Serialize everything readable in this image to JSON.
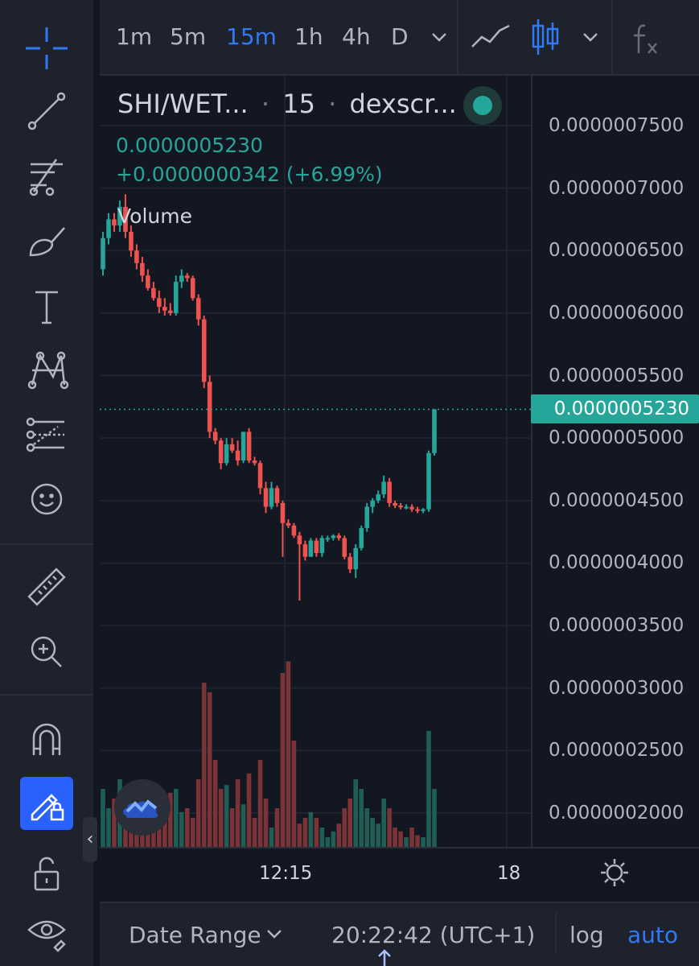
{
  "toolbar": {
    "intervals": [
      "1m",
      "5m",
      "15m",
      "1h",
      "4h",
      "D"
    ],
    "active_interval": "15m"
  },
  "legend": {
    "symbol": "SHI/WET...",
    "interval": "15",
    "exchange": "dexscr...",
    "separator": "·",
    "price": "0.0000005230",
    "change": "+0.0000000342 (+6.99%)",
    "volume_label": "Volume"
  },
  "price_scale": {
    "labels": [
      "0.0000007500",
      "0.0000007000",
      "0.0000006500",
      "0.0000006000",
      "0.0000005500",
      "0.0000005000",
      "0.0000004500",
      "0.0000004000",
      "0.0000003500",
      "0.0000003000",
      "0.0000002500",
      "0.0000002000"
    ],
    "last_price": "0.0000005230"
  },
  "time_scale": {
    "labels": [
      "12:15",
      "18"
    ]
  },
  "bottom_bar": {
    "date_range": "Date Range",
    "clock": "20:22:42 (UTC+1)",
    "log": "log",
    "auto": "auto"
  },
  "colors": {
    "up": "#26a69a",
    "down": "#ef5350",
    "accent": "#3179f5",
    "background": "#131722",
    "panel": "#1e222d"
  },
  "chart_data": {
    "type": "candlestick",
    "symbol": "SHI/WETH",
    "interval": "15",
    "y_range": [
      1.8e-07,
      7.9e-07
    ],
    "x_labels": [
      "12:15",
      "18"
    ],
    "candles": [
      {
        "o": 6.35e-07,
        "h": 6.65e-07,
        "l": 6.3e-07,
        "c": 6.6e-07
      },
      {
        "o": 6.6e-07,
        "h": 6.8e-07,
        "l": 6.55e-07,
        "c": 6.75e-07
      },
      {
        "o": 6.75e-07,
        "h": 6.8e-07,
        "l": 6.65e-07,
        "c": 6.7e-07
      },
      {
        "o": 6.7e-07,
        "h": 6.9e-07,
        "l": 6.65e-07,
        "c": 6.85e-07
      },
      {
        "o": 6.85e-07,
        "h": 6.95e-07,
        "l": 6.6e-07,
        "c": 6.65e-07
      },
      {
        "o": 6.65e-07,
        "h": 6.7e-07,
        "l": 6.45e-07,
        "c": 6.5e-07
      },
      {
        "o": 6.5e-07,
        "h": 6.55e-07,
        "l": 6.35e-07,
        "c": 6.4e-07
      },
      {
        "o": 6.4e-07,
        "h": 6.45e-07,
        "l": 6.25e-07,
        "c": 6.3e-07
      },
      {
        "o": 6.3e-07,
        "h": 6.35e-07,
        "l": 6.18e-07,
        "c": 6.2e-07
      },
      {
        "o": 6.2e-07,
        "h": 6.25e-07,
        "l": 6.1e-07,
        "c": 6.12e-07
      },
      {
        "o": 6.12e-07,
        "h": 6.18e-07,
        "l": 6e-07,
        "c": 6.05e-07
      },
      {
        "o": 6.05e-07,
        "h": 6.12e-07,
        "l": 5.98e-07,
        "c": 6.02e-07
      },
      {
        "o": 6.02e-07,
        "h": 6.08e-07,
        "l": 5.98e-07,
        "c": 6e-07
      },
      {
        "o": 6e-07,
        "h": 6.3e-07,
        "l": 5.98e-07,
        "c": 6.25e-07
      },
      {
        "o": 6.25e-07,
        "h": 6.35e-07,
        "l": 6.2e-07,
        "c": 6.3e-07
      },
      {
        "o": 6.3e-07,
        "h": 6.32e-07,
        "l": 6.25e-07,
        "c": 6.28e-07
      },
      {
        "o": 6.28e-07,
        "h": 6.3e-07,
        "l": 6.1e-07,
        "c": 6.12e-07
      },
      {
        "o": 6.12e-07,
        "h": 6.15e-07,
        "l": 5.9e-07,
        "c": 5.95e-07
      },
      {
        "o": 5.95e-07,
        "h": 5.98e-07,
        "l": 5.4e-07,
        "c": 5.45e-07
      },
      {
        "o": 5.45e-07,
        "h": 5.5e-07,
        "l": 5e-07,
        "c": 5.05e-07
      },
      {
        "o": 5.05e-07,
        "h": 5.08e-07,
        "l": 4.95e-07,
        "c": 4.98e-07
      },
      {
        "o": 4.98e-07,
        "h": 5e-07,
        "l": 4.75e-07,
        "c": 4.8e-07
      },
      {
        "o": 4.8e-07,
        "h": 5e-07,
        "l": 4.78e-07,
        "c": 4.95e-07
      },
      {
        "o": 4.95e-07,
        "h": 5e-07,
        "l": 4.88e-07,
        "c": 4.9e-07
      },
      {
        "o": 4.9e-07,
        "h": 4.98e-07,
        "l": 4.78e-07,
        "c": 4.82e-07
      },
      {
        "o": 4.82e-07,
        "h": 5.05e-07,
        "l": 4.8e-07,
        "c": 5.05e-07
      },
      {
        "o": 5.05e-07,
        "h": 5.08e-07,
        "l": 4.8e-07,
        "c": 4.82e-07
      },
      {
        "o": 4.82e-07,
        "h": 4.85e-07,
        "l": 4.78e-07,
        "c": 4.8e-07
      },
      {
        "o": 4.8e-07,
        "h": 4.82e-07,
        "l": 4.55e-07,
        "c": 4.6e-07
      },
      {
        "o": 4.6e-07,
        "h": 4.65e-07,
        "l": 4.4e-07,
        "c": 4.45e-07
      },
      {
        "o": 4.45e-07,
        "h": 4.65e-07,
        "l": 4.43e-07,
        "c": 4.6e-07
      },
      {
        "o": 4.6e-07,
        "h": 4.62e-07,
        "l": 4.45e-07,
        "c": 4.48e-07
      },
      {
        "o": 4.48e-07,
        "h": 4.5e-07,
        "l": 4.05e-07,
        "c": 4.32e-07
      },
      {
        "o": 4.32e-07,
        "h": 4.35e-07,
        "l": 4.28e-07,
        "c": 4.3e-07
      },
      {
        "o": 4.3e-07,
        "h": 4.32e-07,
        "l": 4.2e-07,
        "c": 4.22e-07
      },
      {
        "o": 4.22e-07,
        "h": 4.25e-07,
        "l": 3.7e-07,
        "c": 4.15e-07
      },
      {
        "o": 4.15e-07,
        "h": 4.18e-07,
        "l": 4.02e-07,
        "c": 4.05e-07
      },
      {
        "o": 4.05e-07,
        "h": 4.2e-07,
        "l": 4.05e-07,
        "c": 4.18e-07
      },
      {
        "o": 4.18e-07,
        "h": 4.2e-07,
        "l": 4.05e-07,
        "c": 4.08e-07
      },
      {
        "o": 4.08e-07,
        "h": 4.22e-07,
        "l": 4.05e-07,
        "c": 4.2e-07
      },
      {
        "o": 4.2e-07,
        "h": 4.22e-07,
        "l": 4.17e-07,
        "c": 4.2e-07
      },
      {
        "o": 4.2e-07,
        "h": 4.23e-07,
        "l": 4.18e-07,
        "c": 4.22e-07
      },
      {
        "o": 4.22e-07,
        "h": 4.24e-07,
        "l": 4.18e-07,
        "c": 4.2e-07
      },
      {
        "o": 4.2e-07,
        "h": 4.22e-07,
        "l": 4.03e-07,
        "c": 4.05e-07
      },
      {
        "o": 4.05e-07,
        "h": 4.08e-07,
        "l": 3.92e-07,
        "c": 3.95e-07
      },
      {
        "o": 3.95e-07,
        "h": 4.15e-07,
        "l": 3.88e-07,
        "c": 4.12e-07
      },
      {
        "o": 4.12e-07,
        "h": 4.3e-07,
        "l": 4.1e-07,
        "c": 4.28e-07
      },
      {
        "o": 4.28e-07,
        "h": 4.48e-07,
        "l": 4.25e-07,
        "c": 4.45e-07
      },
      {
        "o": 4.45e-07,
        "h": 4.52e-07,
        "l": 4.4e-07,
        "c": 4.5e-07
      },
      {
        "o": 4.5e-07,
        "h": 4.58e-07,
        "l": 4.48e-07,
        "c": 4.55e-07
      },
      {
        "o": 4.55e-07,
        "h": 4.7e-07,
        "l": 4.52e-07,
        "c": 4.65e-07
      },
      {
        "o": 4.65e-07,
        "h": 4.68e-07,
        "l": 4.45e-07,
        "c": 4.48e-07
      },
      {
        "o": 4.48e-07,
        "h": 4.5e-07,
        "l": 4.44e-07,
        "c": 4.46e-07
      },
      {
        "o": 4.46e-07,
        "h": 4.48e-07,
        "l": 4.43e-07,
        "c": 4.45e-07
      },
      {
        "o": 4.45e-07,
        "h": 4.47e-07,
        "l": 4.43e-07,
        "c": 4.45e-07
      },
      {
        "o": 4.45e-07,
        "h": 4.47e-07,
        "l": 4.41e-07,
        "c": 4.43e-07
      },
      {
        "o": 4.43e-07,
        "h": 4.45e-07,
        "l": 4.4e-07,
        "c": 4.42e-07
      },
      {
        "o": 4.42e-07,
        "h": 4.44e-07,
        "l": 4.4e-07,
        "c": 4.43e-07
      },
      {
        "o": 4.43e-07,
        "h": 4.9e-07,
        "l": 4.41e-07,
        "c": 4.88e-07
      },
      {
        "o": 4.88e-07,
        "h": 5.23e-07,
        "l": 4.86e-07,
        "c": 5.23e-07
      }
    ],
    "volume": [
      0.3,
      0.2,
      0.25,
      0.35,
      0.3,
      0.25,
      0.2,
      0.3,
      0.25,
      0.2,
      0.15,
      0.25,
      0.28,
      0.3,
      0.18,
      0.2,
      0.15,
      0.35,
      0.85,
      0.8,
      0.45,
      0.3,
      0.32,
      0.2,
      0.35,
      0.22,
      0.38,
      0.15,
      0.45,
      0.25,
      0.1,
      0.2,
      0.9,
      0.96,
      0.55,
      0.12,
      0.15,
      0.18,
      0.15,
      0.1,
      0.05,
      0.08,
      0.12,
      0.2,
      0.25,
      0.35,
      0.3,
      0.2,
      0.15,
      0.12,
      0.25,
      0.2,
      0.1,
      0.08,
      0.05,
      0.1,
      0.06,
      0.05,
      0.6,
      0.3
    ]
  }
}
